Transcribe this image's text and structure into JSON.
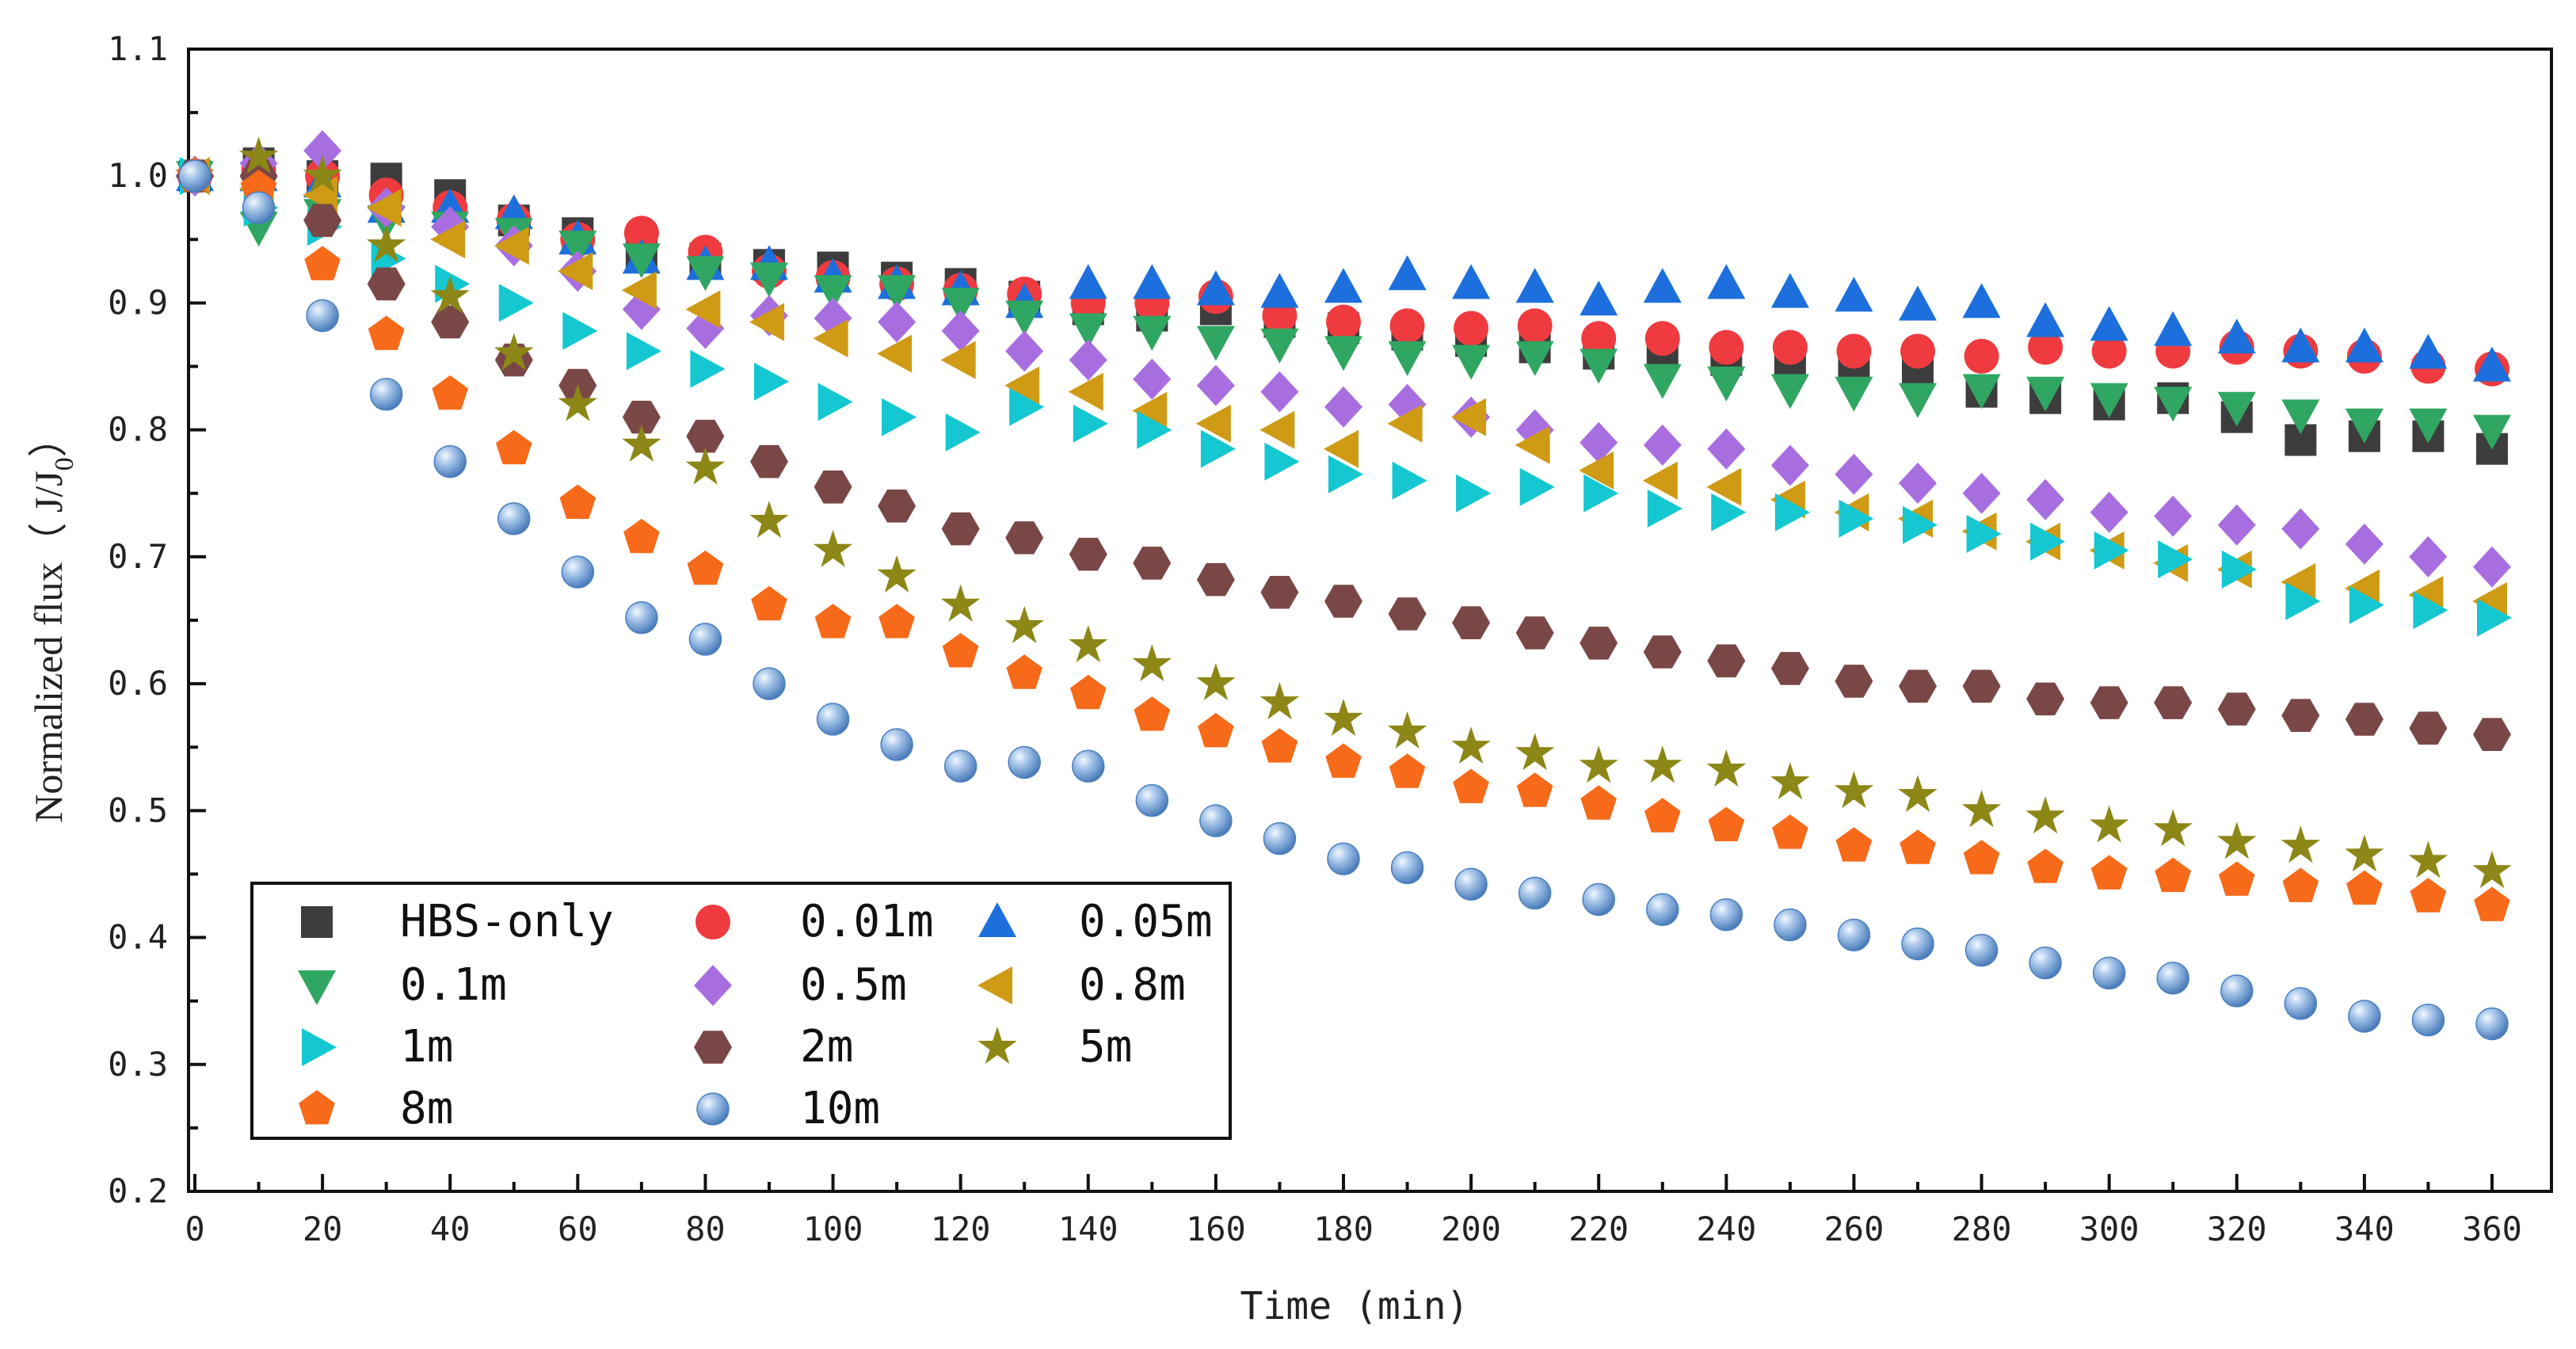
{
  "chart_data": {
    "type": "scatter",
    "title": "",
    "xlabel": "Time (min)",
    "ylabel": "Normalized flux (J/J0)",
    "ylabel_main": "Normalized flux（ J/J",
    "ylabel_sub": "0",
    "ylabel_close": "）",
    "xlim": [
      0,
      360
    ],
    "ylim": [
      0.2,
      1.1
    ],
    "xticks": [
      "0",
      "20",
      "40",
      "60",
      "80",
      "100",
      "120",
      "140",
      "160",
      "180",
      "200",
      "220",
      "240",
      "260",
      "280",
      "300",
      "320",
      "340",
      "360"
    ],
    "yticks": [
      "0.2",
      "0.3",
      "0.4",
      "0.5",
      "0.6",
      "0.7",
      "0.8",
      "0.9",
      "1.0",
      "1.1"
    ],
    "legend_position": "bottom-left",
    "x": [
      0,
      10,
      20,
      30,
      40,
      50,
      60,
      70,
      80,
      90,
      100,
      110,
      120,
      130,
      140,
      150,
      160,
      170,
      180,
      190,
      200,
      210,
      220,
      230,
      240,
      250,
      260,
      270,
      280,
      290,
      300,
      310,
      320,
      330,
      340,
      350,
      360
    ],
    "series": [
      {
        "name": "HBS-only",
        "marker": "square",
        "color": "#3d3d3d",
        "values": [
          1.0,
          1.01,
          1.0,
          0.998,
          0.985,
          0.965,
          0.955,
          0.94,
          0.935,
          0.93,
          0.928,
          0.92,
          0.915,
          0.905,
          0.895,
          0.89,
          0.895,
          0.885,
          0.88,
          0.875,
          0.87,
          0.865,
          0.86,
          0.86,
          0.855,
          0.855,
          0.85,
          0.845,
          0.83,
          0.825,
          0.82,
          0.825,
          0.81,
          0.792,
          0.795,
          0.795,
          0.785
        ]
      },
      {
        "name": "0.01m",
        "marker": "circle",
        "color": "#ef3b3f",
        "values": [
          1.0,
          1.005,
          1.0,
          0.985,
          0.975,
          0.965,
          0.95,
          0.955,
          0.94,
          0.925,
          0.92,
          0.915,
          0.91,
          0.907,
          0.9,
          0.9,
          0.905,
          0.89,
          0.885,
          0.882,
          0.88,
          0.882,
          0.872,
          0.872,
          0.865,
          0.865,
          0.862,
          0.862,
          0.858,
          0.865,
          0.862,
          0.862,
          0.865,
          0.862,
          0.858,
          0.85,
          0.848
        ]
      },
      {
        "name": "0.05m",
        "marker": "triangle-up",
        "color": "#1c6fdc",
        "values": [
          1.0,
          1.0,
          0.995,
          0.975,
          0.975,
          0.97,
          0.95,
          0.935,
          0.93,
          0.93,
          0.92,
          0.915,
          0.91,
          0.9,
          0.915,
          0.915,
          0.91,
          0.908,
          0.912,
          0.922,
          0.915,
          0.912,
          0.902,
          0.912,
          0.915,
          0.908,
          0.905,
          0.898,
          0.9,
          0.885,
          0.882,
          0.878,
          0.872,
          0.865,
          0.865,
          0.86,
          0.85
        ]
      },
      {
        "name": "0.1m",
        "marker": "triangle-down",
        "color": "#2fa662",
        "values": [
          1.0,
          0.96,
          0.97,
          0.965,
          0.96,
          0.955,
          0.945,
          0.935,
          0.925,
          0.92,
          0.91,
          0.91,
          0.9,
          0.89,
          0.88,
          0.878,
          0.87,
          0.868,
          0.862,
          0.858,
          0.855,
          0.858,
          0.852,
          0.84,
          0.838,
          0.832,
          0.83,
          0.825,
          0.832,
          0.83,
          0.825,
          0.822,
          0.818,
          0.812,
          0.805,
          0.805,
          0.8
        ]
      },
      {
        "name": "0.5m",
        "marker": "diamond",
        "color": "#a86ee0",
        "values": [
          1.0,
          1.01,
          1.02,
          0.975,
          0.96,
          0.945,
          0.925,
          0.895,
          0.88,
          0.89,
          0.888,
          0.885,
          0.878,
          0.862,
          0.855,
          0.84,
          0.835,
          0.83,
          0.818,
          0.82,
          0.81,
          0.8,
          0.79,
          0.788,
          0.785,
          0.772,
          0.765,
          0.758,
          0.75,
          0.745,
          0.735,
          0.732,
          0.725,
          0.722,
          0.71,
          0.7,
          0.692
        ]
      },
      {
        "name": "0.8m",
        "marker": "triangle-left",
        "color": "#cf9a14",
        "values": [
          1.0,
          0.99,
          0.985,
          0.975,
          0.95,
          0.945,
          0.925,
          0.91,
          0.895,
          0.885,
          0.872,
          0.86,
          0.855,
          0.835,
          0.83,
          0.815,
          0.805,
          0.8,
          0.785,
          0.805,
          0.81,
          0.788,
          0.768,
          0.76,
          0.755,
          0.745,
          0.735,
          0.73,
          0.72,
          0.712,
          0.705,
          0.695,
          0.69,
          0.68,
          0.675,
          0.67,
          0.665
        ]
      },
      {
        "name": "1m",
        "marker": "triangle-right",
        "color": "#14c7d1",
        "values": [
          1.0,
          0.975,
          0.96,
          0.935,
          0.915,
          0.9,
          0.878,
          0.862,
          0.848,
          0.838,
          0.822,
          0.81,
          0.798,
          0.818,
          0.805,
          0.8,
          0.785,
          0.775,
          0.765,
          0.76,
          0.75,
          0.755,
          0.75,
          0.738,
          0.735,
          0.735,
          0.73,
          0.725,
          0.718,
          0.712,
          0.705,
          0.698,
          0.69,
          0.665,
          0.662,
          0.658,
          0.652
        ]
      },
      {
        "name": "2m",
        "marker": "hexagon",
        "color": "#7a4747",
        "values": [
          1.0,
          1.0,
          0.965,
          0.915,
          0.885,
          0.855,
          0.835,
          0.81,
          0.795,
          0.775,
          0.755,
          0.74,
          0.722,
          0.715,
          0.702,
          0.695,
          0.682,
          0.672,
          0.665,
          0.655,
          0.648,
          0.64,
          0.632,
          0.625,
          0.618,
          0.612,
          0.602,
          0.598,
          0.598,
          0.588,
          0.585,
          0.585,
          0.58,
          0.575,
          0.572,
          0.565,
          0.56
        ]
      },
      {
        "name": "5m",
        "marker": "star",
        "color": "#8c8716",
        "values": [
          1.0,
          1.015,
          1.0,
          0.945,
          0.905,
          0.86,
          0.82,
          0.788,
          0.77,
          0.728,
          0.705,
          0.685,
          0.662,
          0.645,
          0.63,
          0.615,
          0.6,
          0.585,
          0.572,
          0.562,
          0.55,
          0.545,
          0.535,
          0.535,
          0.532,
          0.522,
          0.515,
          0.512,
          0.5,
          0.495,
          0.488,
          0.485,
          0.475,
          0.472,
          0.465,
          0.46,
          0.452
        ]
      },
      {
        "name": "8m",
        "marker": "pentagon",
        "color": "#f76a1a",
        "values": [
          1.0,
          0.99,
          0.93,
          0.875,
          0.828,
          0.785,
          0.742,
          0.715,
          0.69,
          0.662,
          0.648,
          0.648,
          0.625,
          0.608,
          0.592,
          0.575,
          0.562,
          0.55,
          0.538,
          0.53,
          0.518,
          0.515,
          0.505,
          0.495,
          0.488,
          0.482,
          0.472,
          0.47,
          0.462,
          0.455,
          0.45,
          0.448,
          0.445,
          0.44,
          0.438,
          0.432,
          0.425
        ]
      },
      {
        "name": "10m",
        "marker": "sphere",
        "color": "#5b8fc9",
        "values": [
          1.0,
          0.975,
          0.89,
          0.828,
          0.775,
          0.73,
          0.688,
          0.652,
          0.635,
          0.6,
          0.572,
          0.552,
          0.535,
          0.538,
          0.535,
          0.508,
          0.492,
          0.478,
          0.462,
          0.455,
          0.442,
          0.435,
          0.43,
          0.422,
          0.418,
          0.41,
          0.402,
          0.395,
          0.39,
          0.38,
          0.372,
          0.368,
          0.358,
          0.348,
          0.338,
          0.335,
          0.332
        ]
      }
    ]
  }
}
